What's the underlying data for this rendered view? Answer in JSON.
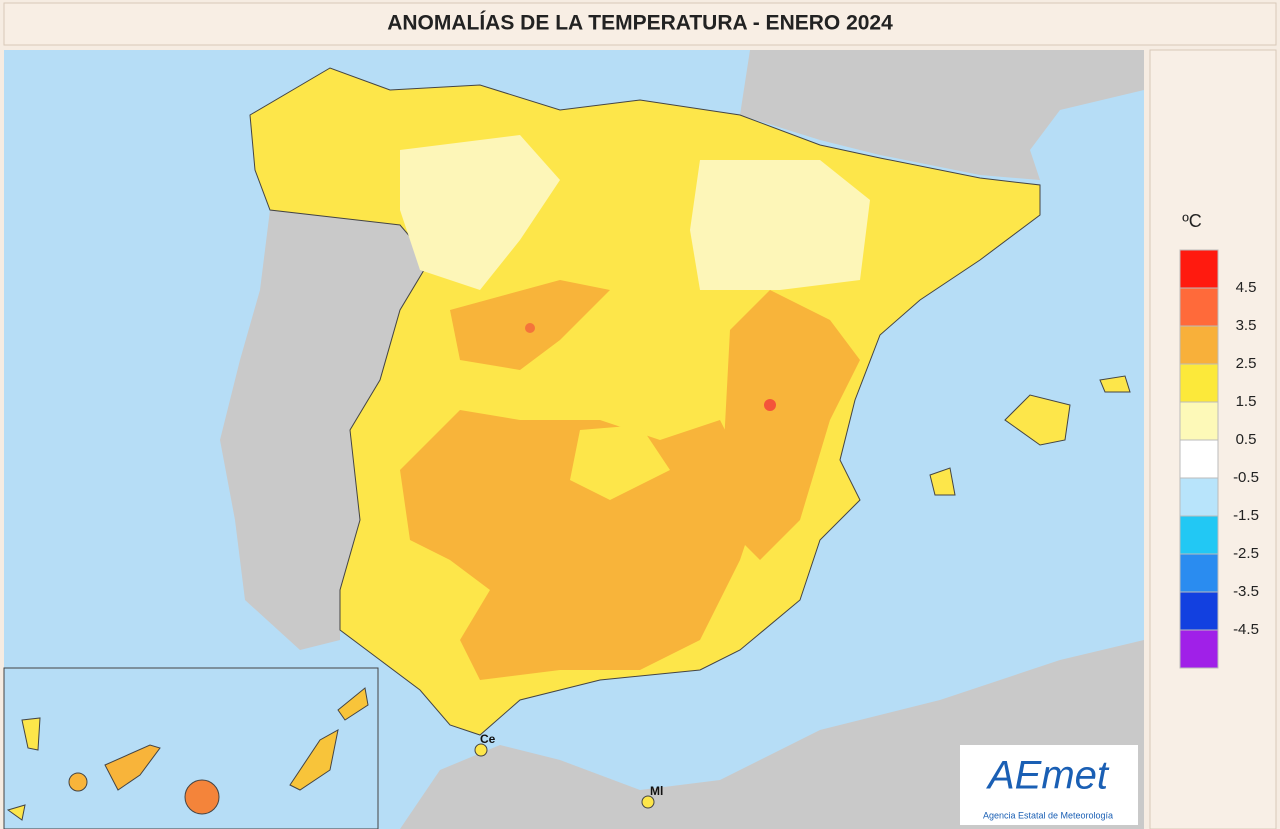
{
  "title": "ANOMALÍAS DE LA TEMPERATURA - ENERO 2024",
  "legend": {
    "unit": "ºC",
    "colors": [
      "#ff1a0f",
      "#ff6a3a",
      "#f8b03a",
      "#fce93a",
      "#fdf9b8",
      "#ffffff",
      "#b8e4fb",
      "#22c8f4",
      "#2a8cf0",
      "#1240e0",
      "#a020e8"
    ],
    "labels": [
      "4.5",
      "3.5",
      "2.5",
      "1.5",
      "0.5",
      "-0.5",
      "-1.5",
      "-2.5",
      "-3.5",
      "-4.5"
    ]
  },
  "places": [
    "Ce",
    "Ml"
  ],
  "logo": {
    "name": "AEmet",
    "subtitle": "Agencia Estatal de Meteorología"
  }
}
